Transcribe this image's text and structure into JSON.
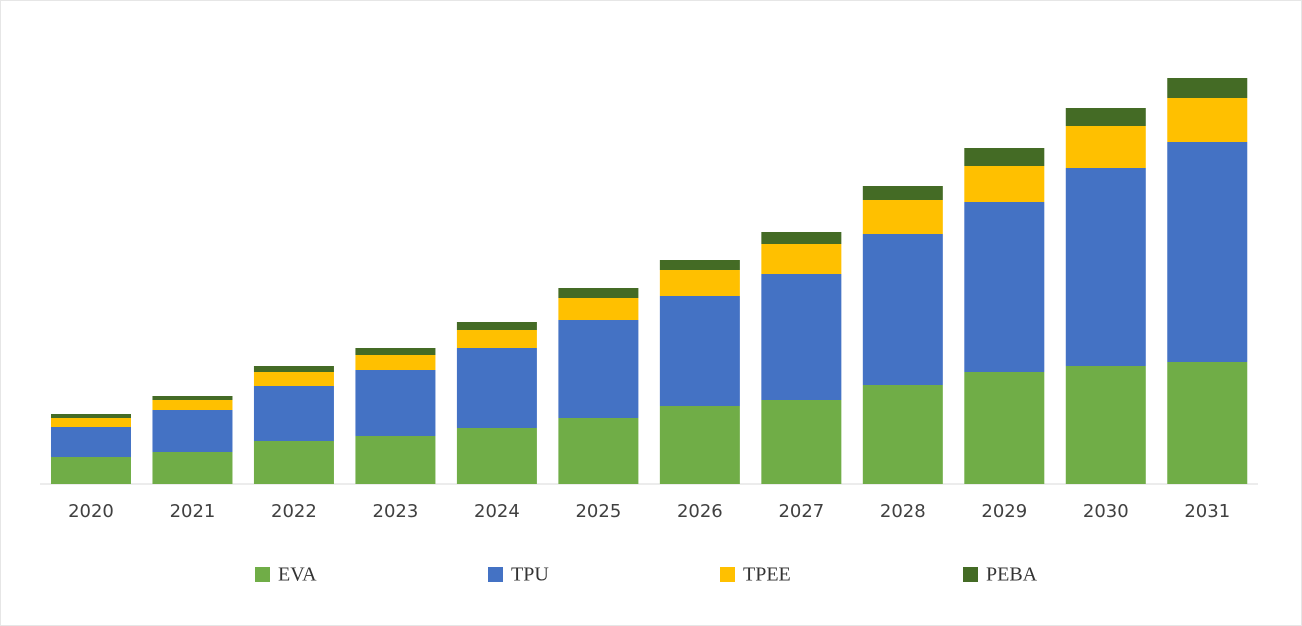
{
  "chart_data": {
    "type": "stacked_bar",
    "categories": [
      "2020",
      "2021",
      "2022",
      "2023",
      "2024",
      "2025",
      "2026",
      "2027",
      "2028",
      "2029",
      "2030",
      "2031"
    ],
    "series": [
      {
        "name": "EVA",
        "color": "#70ad47",
        "values": [
          27,
          32,
          43,
          48,
          56,
          66,
          78,
          84,
          99,
          112,
          118,
          122
        ]
      },
      {
        "name": "TPU",
        "color": "#4472c4",
        "values": [
          30,
          42,
          55,
          66,
          80,
          98,
          110,
          126,
          151,
          170,
          198,
          220
        ]
      },
      {
        "name": "TPEE",
        "color": "#ffc000",
        "values": [
          9,
          10,
          14,
          15,
          18,
          22,
          26,
          30,
          34,
          36,
          42,
          44
        ]
      },
      {
        "name": "PEBA",
        "color": "#446b25",
        "values": [
          4,
          4,
          6,
          7,
          8,
          10,
          10,
          12,
          14,
          18,
          18,
          20
        ]
      }
    ],
    "ylim": [
      0,
      484
    ]
  }
}
